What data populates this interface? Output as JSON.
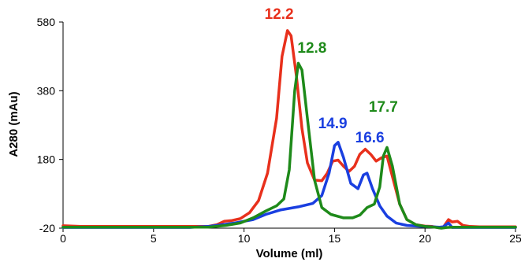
{
  "chart_data": {
    "type": "line",
    "title": "",
    "xlabel": "Volume (ml)",
    "ylabel": "A280 (mAu)",
    "xlim": [
      0,
      25
    ],
    "ylim": [
      -20,
      580
    ],
    "x_ticks": [
      0,
      5,
      10,
      15,
      20,
      25
    ],
    "y_ticks": [
      -20,
      180,
      380,
      580
    ],
    "grid": false,
    "legend": "none",
    "series": [
      {
        "color": "#e8301c",
        "points": [
          [
            0,
            -13
          ],
          [
            1,
            -15
          ],
          [
            2,
            -15
          ],
          [
            3,
            -15
          ],
          [
            4,
            -15
          ],
          [
            5,
            -15
          ],
          [
            6,
            -15
          ],
          [
            7,
            -15
          ],
          [
            8,
            -15
          ],
          [
            8.5,
            -10
          ],
          [
            8.9,
            0
          ],
          [
            9.3,
            2
          ],
          [
            9.8,
            8
          ],
          [
            10.3,
            25
          ],
          [
            10.8,
            60
          ],
          [
            11.3,
            140
          ],
          [
            11.8,
            300
          ],
          [
            12.1,
            480
          ],
          [
            12.4,
            555
          ],
          [
            12.6,
            540
          ],
          [
            12.9,
            420
          ],
          [
            13.2,
            270
          ],
          [
            13.5,
            170
          ],
          [
            13.9,
            120
          ],
          [
            14.3,
            118
          ],
          [
            14.6,
            140
          ],
          [
            14.9,
            175
          ],
          [
            15.2,
            178
          ],
          [
            15.5,
            160
          ],
          [
            15.8,
            145
          ],
          [
            16.1,
            160
          ],
          [
            16.4,
            195
          ],
          [
            16.7,
            210
          ],
          [
            17.0,
            195
          ],
          [
            17.3,
            175
          ],
          [
            17.6,
            185
          ],
          [
            17.9,
            190
          ],
          [
            18.2,
            130
          ],
          [
            18.6,
            50
          ],
          [
            19.0,
            5
          ],
          [
            19.5,
            -10
          ],
          [
            20.0,
            -14
          ],
          [
            20.4,
            -15
          ],
          [
            20.8,
            -19
          ],
          [
            21.0,
            -18
          ],
          [
            21.3,
            5
          ],
          [
            21.5,
            -2
          ],
          [
            21.8,
            0
          ],
          [
            22.1,
            -12
          ],
          [
            22.5,
            -15
          ],
          [
            23,
            -16
          ],
          [
            24,
            -16
          ],
          [
            25,
            -16
          ]
        ]
      },
      {
        "color": "#1a3fe0",
        "points": [
          [
            0,
            -18
          ],
          [
            2,
            -18
          ],
          [
            4,
            -18
          ],
          [
            6,
            -18
          ],
          [
            7,
            -18
          ],
          [
            8,
            -15
          ],
          [
            8.8,
            -10
          ],
          [
            9.5,
            -5
          ],
          [
            10.5,
            5
          ],
          [
            11.2,
            20
          ],
          [
            12,
            33
          ],
          [
            13,
            42
          ],
          [
            13.8,
            52
          ],
          [
            14.3,
            75
          ],
          [
            14.7,
            140
          ],
          [
            15.0,
            220
          ],
          [
            15.2,
            230
          ],
          [
            15.5,
            185
          ],
          [
            15.9,
            110
          ],
          [
            16.3,
            95
          ],
          [
            16.6,
            135
          ],
          [
            16.8,
            140
          ],
          [
            17.1,
            95
          ],
          [
            17.5,
            45
          ],
          [
            17.9,
            15
          ],
          [
            18.4,
            -5
          ],
          [
            19,
            -12
          ],
          [
            19.8,
            -15
          ],
          [
            20.4,
            -16
          ],
          [
            20.8,
            -17
          ],
          [
            21.0,
            -16
          ],
          [
            21.3,
            -5
          ],
          [
            21.5,
            -18
          ],
          [
            22,
            -18
          ],
          [
            23,
            -18
          ],
          [
            25,
            -18
          ]
        ]
      },
      {
        "color": "#1e8a1a",
        "points": [
          [
            0,
            -17
          ],
          [
            2,
            -17
          ],
          [
            4,
            -17
          ],
          [
            6,
            -17
          ],
          [
            8,
            -17
          ],
          [
            9,
            -12
          ],
          [
            9.8,
            -5
          ],
          [
            10.5,
            10
          ],
          [
            11.2,
            30
          ],
          [
            11.8,
            45
          ],
          [
            12.2,
            65
          ],
          [
            12.5,
            150
          ],
          [
            12.8,
            380
          ],
          [
            13.0,
            460
          ],
          [
            13.2,
            440
          ],
          [
            13.5,
            300
          ],
          [
            13.9,
            120
          ],
          [
            14.3,
            40
          ],
          [
            14.8,
            20
          ],
          [
            15.5,
            10
          ],
          [
            16.0,
            10
          ],
          [
            16.4,
            18
          ],
          [
            16.8,
            40
          ],
          [
            17.2,
            50
          ],
          [
            17.5,
            100
          ],
          [
            17.7,
            190
          ],
          [
            17.9,
            215
          ],
          [
            18.2,
            160
          ],
          [
            18.6,
            50
          ],
          [
            19.0,
            5
          ],
          [
            19.5,
            -10
          ],
          [
            20.0,
            -15
          ],
          [
            20.5,
            -17
          ],
          [
            20.9,
            -20
          ],
          [
            21.2,
            -18
          ],
          [
            21.6,
            -17
          ],
          [
            22,
            -17
          ],
          [
            23,
            -17
          ],
          [
            25,
            -17
          ]
        ]
      }
    ],
    "annotations": [
      {
        "text": "12.2",
        "x": 12.2,
        "color": "#e8301c"
      },
      {
        "text": "12.8",
        "x": 12.8,
        "color": "#1e8a1a"
      },
      {
        "text": "14.9",
        "x": 14.9,
        "color": "#1a3fe0"
      },
      {
        "text": "16.6",
        "x": 16.6,
        "color": "#1a3fe0"
      },
      {
        "text": "17.7",
        "x": 17.7,
        "color": "#1e8a1a"
      }
    ]
  }
}
